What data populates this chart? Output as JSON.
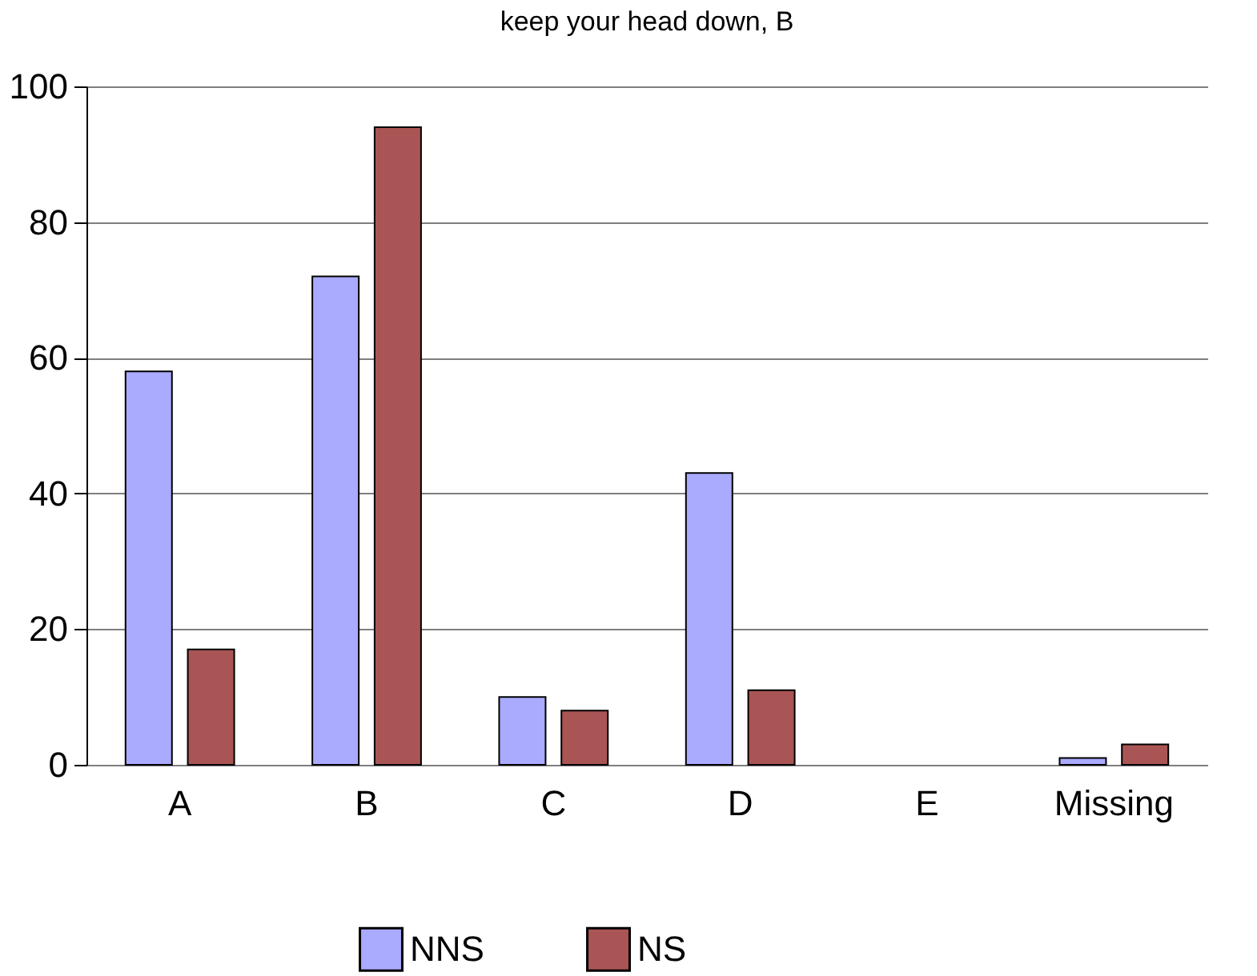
{
  "chart_data": {
    "type": "bar",
    "title": "keep your head down, B",
    "categories": [
      "A",
      "B",
      "C",
      "D",
      "E",
      "Missing"
    ],
    "series": [
      {
        "name": "NNS",
        "color": "#aaaaff",
        "values": [
          58,
          72,
          10,
          43,
          0,
          1
        ]
      },
      {
        "name": "NS",
        "color": "#aa5555",
        "values": [
          17,
          94,
          8,
          11,
          0,
          3
        ]
      }
    ],
    "ylim": [
      0,
      100
    ],
    "yticks": [
      0,
      20,
      40,
      60,
      80,
      100
    ],
    "grid": "y",
    "legend": "bottom"
  }
}
